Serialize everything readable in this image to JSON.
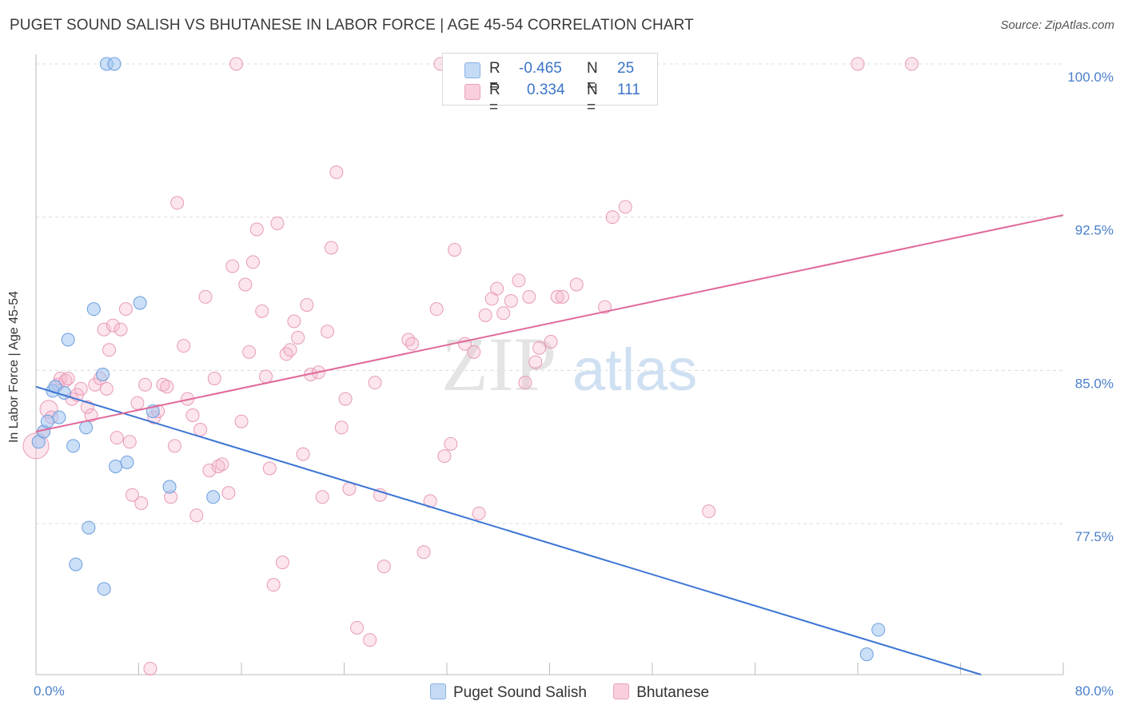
{
  "title": "PUGET SOUND SALISH VS BHUTANESE IN LABOR FORCE | AGE 45-54 CORRELATION CHART",
  "source": "Source: ZipAtlas.com",
  "watermark": {
    "zip": "ZIP",
    "atlas": "atlas"
  },
  "stats": [
    {
      "r_label": "R =",
      "r": "-0.465",
      "n_label": "N =",
      "n": "25"
    },
    {
      "r_label": "R =",
      "r": "0.334",
      "n_label": "N =",
      "n": "111"
    }
  ],
  "colors": {
    "blue": "#3b74d4",
    "pink": "#e0699a",
    "blue_fill": "#c5dbf5",
    "pink_fill": "#f9cfdd",
    "tick_text": "#4a7fcc"
  },
  "chart_data": {
    "type": "scatter",
    "title": "PUGET SOUND SALISH VS BHUTANESE IN LABOR FORCE | AGE 45-54 CORRELATION CHART",
    "xlabel": "",
    "ylabel": "In Labor Force | Age 45-54",
    "xlim": [
      0,
      80
    ],
    "ylim": [
      70.0,
      100.5
    ],
    "x_tick_labels": [
      "0.0%",
      "80.0%"
    ],
    "y_ticks": [
      77.5,
      85.0,
      92.5,
      100.0
    ],
    "y_tick_labels": [
      "77.5%",
      "85.0%",
      "92.5%",
      "100.0%"
    ],
    "legend_position": "bottom-center",
    "grid": true,
    "series": [
      {
        "name": "Puget Sound Salish",
        "color": "#3b74d4",
        "trend": {
          "x": [
            0,
            73.6
          ],
          "y": [
            84.2,
            70.0
          ]
        },
        "points": [
          [
            0.2,
            81.5
          ],
          [
            0.6,
            82.0
          ],
          [
            0.9,
            82.5
          ],
          [
            1.3,
            84.0
          ],
          [
            1.5,
            84.2
          ],
          [
            1.8,
            82.7
          ],
          [
            2.2,
            83.9
          ],
          [
            2.5,
            86.5
          ],
          [
            2.9,
            81.3
          ],
          [
            3.1,
            75.5
          ],
          [
            3.9,
            82.2
          ],
          [
            4.1,
            77.3
          ],
          [
            4.5,
            88.0
          ],
          [
            5.2,
            84.8
          ],
          [
            5.3,
            74.3
          ],
          [
            5.5,
            100.0
          ],
          [
            6.1,
            100.0
          ],
          [
            6.2,
            80.3
          ],
          [
            7.1,
            80.5
          ],
          [
            8.1,
            88.3
          ],
          [
            9.1,
            83.0
          ],
          [
            10.4,
            79.3
          ],
          [
            13.8,
            78.8
          ],
          [
            64.7,
            71.1
          ],
          [
            65.6,
            72.3
          ]
        ]
      },
      {
        "name": "Bhutanese",
        "color": "#e0699a",
        "trend": {
          "x": [
            0,
            80
          ],
          "y": [
            82.0,
            92.6
          ]
        },
        "points": [
          [
            0.0,
            81.3
          ],
          [
            0.6,
            82.0
          ],
          [
            1.0,
            83.1
          ],
          [
            1.2,
            82.7
          ],
          [
            1.7,
            84.3
          ],
          [
            1.9,
            84.6
          ],
          [
            2.3,
            84.5
          ],
          [
            2.5,
            84.6
          ],
          [
            2.8,
            83.6
          ],
          [
            3.2,
            83.8
          ],
          [
            3.5,
            84.1
          ],
          [
            4.0,
            83.2
          ],
          [
            4.3,
            82.8
          ],
          [
            4.6,
            84.3
          ],
          [
            5.0,
            84.6
          ],
          [
            5.3,
            87.0
          ],
          [
            5.5,
            84.1
          ],
          [
            5.7,
            86.0
          ],
          [
            6.0,
            87.2
          ],
          [
            6.3,
            81.7
          ],
          [
            6.6,
            87.0
          ],
          [
            7.0,
            88.0
          ],
          [
            7.3,
            81.5
          ],
          [
            7.5,
            78.9
          ],
          [
            7.9,
            83.4
          ],
          [
            8.2,
            78.5
          ],
          [
            8.5,
            84.3
          ],
          [
            8.9,
            70.4
          ],
          [
            9.2,
            82.7
          ],
          [
            9.5,
            83.0
          ],
          [
            9.9,
            84.3
          ],
          [
            10.2,
            84.2
          ],
          [
            10.5,
            78.8
          ],
          [
            10.8,
            81.3
          ],
          [
            11.0,
            93.2
          ],
          [
            11.5,
            86.2
          ],
          [
            11.8,
            83.6
          ],
          [
            12.2,
            82.8
          ],
          [
            12.5,
            77.9
          ],
          [
            12.8,
            82.1
          ],
          [
            13.2,
            88.6
          ],
          [
            13.5,
            80.1
          ],
          [
            13.9,
            84.6
          ],
          [
            14.2,
            80.3
          ],
          [
            14.5,
            80.4
          ],
          [
            15.0,
            79.0
          ],
          [
            15.3,
            90.1
          ],
          [
            15.6,
            100.0
          ],
          [
            16.0,
            82.5
          ],
          [
            16.3,
            89.2
          ],
          [
            16.6,
            85.9
          ],
          [
            16.9,
            90.3
          ],
          [
            17.2,
            91.9
          ],
          [
            17.6,
            87.9
          ],
          [
            17.9,
            84.7
          ],
          [
            18.2,
            80.2
          ],
          [
            18.5,
            74.5
          ],
          [
            18.8,
            92.2
          ],
          [
            19.2,
            75.6
          ],
          [
            19.5,
            85.8
          ],
          [
            19.8,
            86.0
          ],
          [
            20.1,
            87.4
          ],
          [
            20.4,
            86.6
          ],
          [
            20.8,
            80.9
          ],
          [
            21.1,
            88.2
          ],
          [
            21.4,
            84.8
          ],
          [
            22.0,
            84.9
          ],
          [
            22.3,
            78.8
          ],
          [
            22.7,
            86.9
          ],
          [
            23.0,
            91.0
          ],
          [
            23.4,
            94.7
          ],
          [
            23.8,
            82.2
          ],
          [
            24.1,
            83.6
          ],
          [
            24.4,
            79.2
          ],
          [
            25.0,
            72.4
          ],
          [
            26.0,
            71.8
          ],
          [
            26.4,
            84.4
          ],
          [
            26.8,
            78.9
          ],
          [
            27.1,
            75.4
          ],
          [
            29.0,
            86.5
          ],
          [
            29.3,
            86.3
          ],
          [
            30.2,
            76.1
          ],
          [
            30.7,
            78.6
          ],
          [
            31.2,
            88.0
          ],
          [
            31.5,
            100.0
          ],
          [
            31.8,
            80.8
          ],
          [
            32.3,
            81.4
          ],
          [
            32.6,
            90.9
          ],
          [
            33.4,
            86.3
          ],
          [
            34.1,
            85.9
          ],
          [
            34.5,
            78.0
          ],
          [
            35.0,
            87.7
          ],
          [
            35.5,
            88.5
          ],
          [
            35.9,
            89.0
          ],
          [
            36.4,
            87.8
          ],
          [
            37.0,
            88.4
          ],
          [
            37.6,
            89.4
          ],
          [
            38.1,
            84.4
          ],
          [
            38.4,
            88.6
          ],
          [
            38.9,
            85.4
          ],
          [
            39.2,
            86.1
          ],
          [
            40.1,
            86.4
          ],
          [
            40.6,
            88.6
          ],
          [
            41.0,
            88.6
          ],
          [
            42.1,
            89.2
          ],
          [
            44.3,
            88.1
          ],
          [
            44.9,
            92.5
          ],
          [
            45.9,
            93.0
          ],
          [
            52.4,
            78.1
          ],
          [
            64.0,
            100.0
          ],
          [
            68.2,
            100.0
          ]
        ]
      }
    ]
  }
}
